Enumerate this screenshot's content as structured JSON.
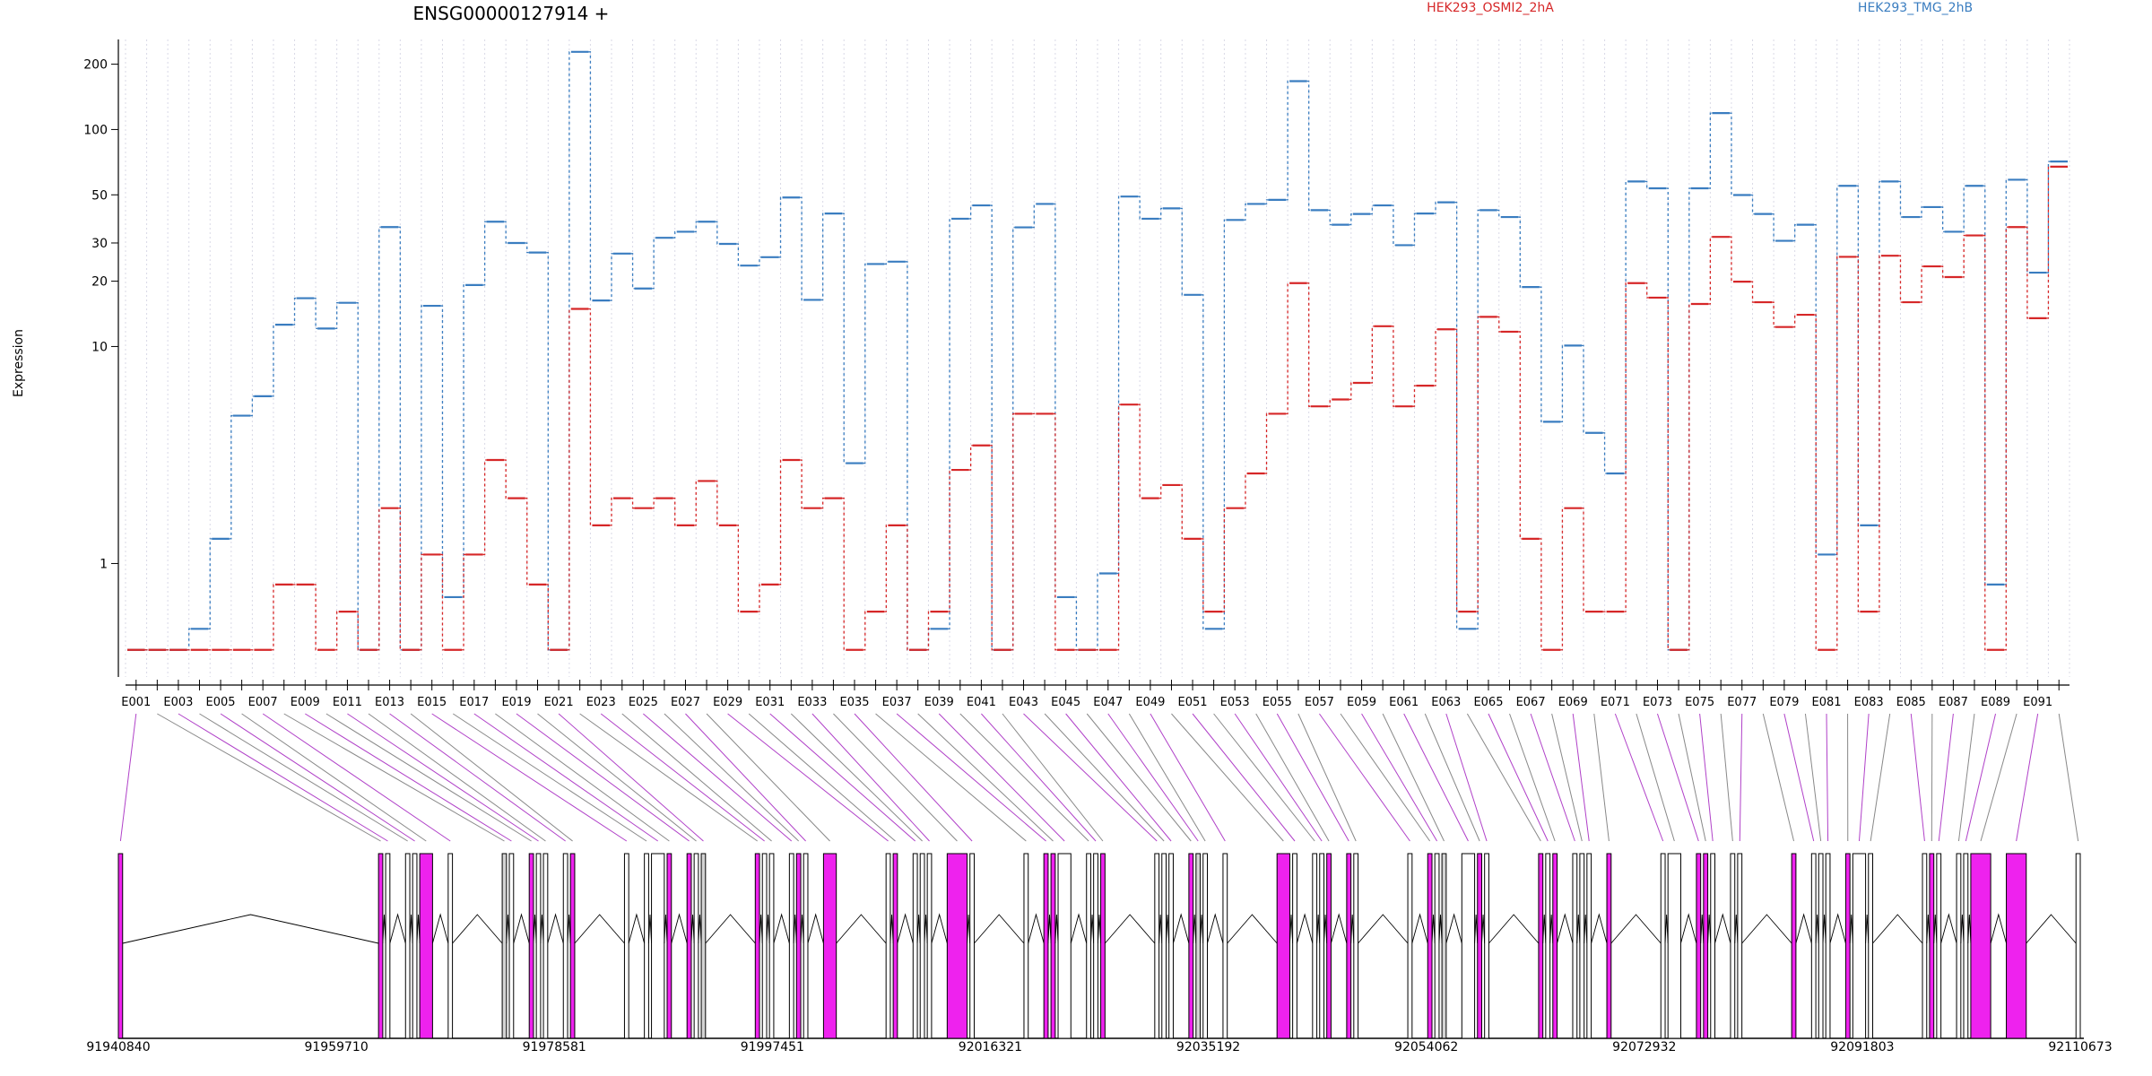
{
  "title": "ENSG00000127914 +",
  "ylabel": "Expression",
  "legend": [
    {
      "name": "HEK293_OSMI2_2hA",
      "color": "#d62728"
    },
    {
      "name": "HEK293_TMG_2hB",
      "color": "#3a7dc0"
    }
  ],
  "colors": {
    "series_a": "#d62728",
    "series_b": "#3a7dc0",
    "exon_highlight": "#ee22ee",
    "exon_plain": "#ffffff",
    "exon_shared": "#d3d3d3",
    "connector_gray": "#888888",
    "connector_magenta": "#b040c8"
  },
  "genomic_ticks": [
    "91940840",
    "91959710",
    "91978581",
    "91997451",
    "92016321",
    "92035192",
    "92054062",
    "92072932",
    "92091803",
    "92110673"
  ],
  "chart_data": {
    "type": "line",
    "title": "ENSG00000127914 +",
    "xlabel": "",
    "ylabel": "Expression",
    "yscale": "log",
    "ylim": [
      0.3,
      260
    ],
    "yticks": [
      1,
      10,
      20,
      30,
      50,
      100,
      200
    ],
    "grid": "vertical dotted per exon",
    "legend_position": "top",
    "categories": [
      "E001",
      "E002",
      "E003",
      "E004",
      "E005",
      "E006",
      "E007",
      "E008",
      "E009",
      "E010",
      "E011",
      "E012",
      "E013",
      "E014",
      "E015",
      "E016",
      "E017",
      "E018",
      "E019",
      "E020",
      "E021",
      "E022",
      "E023",
      "E024",
      "E025",
      "E026",
      "E027",
      "E028",
      "E029",
      "E030",
      "E031",
      "E032",
      "E033",
      "E034",
      "E035",
      "E036",
      "E037",
      "E038",
      "E039",
      "E040",
      "E041",
      "E042",
      "E043",
      "E044",
      "E045",
      "E046",
      "E047",
      "E048",
      "E049",
      "E050",
      "E051",
      "E052",
      "E053",
      "E054",
      "E055",
      "E056",
      "E057",
      "E058",
      "E059",
      "E060",
      "E061",
      "E062",
      "E063",
      "E064",
      "E065",
      "E066",
      "E067",
      "E068",
      "E069",
      "E070",
      "E071",
      "E072",
      "E073",
      "E074",
      "E075",
      "E076",
      "E077",
      "E078",
      "E079",
      "E080",
      "E081",
      "E082",
      "E083",
      "E084",
      "E085",
      "E086",
      "E087",
      "E088",
      "E089",
      "E090",
      "E091",
      "E092"
    ],
    "tick_labels": [
      "E001",
      "E003",
      "E005",
      "E007",
      "E009",
      "E011",
      "E013",
      "E015",
      "E017",
      "E019",
      "E021",
      "E023",
      "E025",
      "E027",
      "E029",
      "E031",
      "E033",
      "E035",
      "E037",
      "E039",
      "E041",
      "E043",
      "E045",
      "E047",
      "E049",
      "E051",
      "E053",
      "E055",
      "E057",
      "E059",
      "E061",
      "E063",
      "E065",
      "E067",
      "E069",
      "E071",
      "E073",
      "E075",
      "E077",
      "E079",
      "E081",
      "E083",
      "E085",
      "E087",
      "E089",
      "E091"
    ],
    "series": [
      {
        "name": "HEK293_TMG_2hB",
        "color": "#3a7dc0",
        "values": [
          0.4,
          0.4,
          0.4,
          0.5,
          1.3,
          4.8,
          5.9,
          12.6,
          16.7,
          12.1,
          15.9,
          0.4,
          35.5,
          0.4,
          15.4,
          0.7,
          19.2,
          37.6,
          30.0,
          27.1,
          0.4,
          228,
          16.3,
          26.8,
          18.5,
          31.7,
          33.8,
          37.6,
          29.7,
          23.6,
          25.8,
          48.6,
          16.4,
          41.0,
          2.9,
          24.0,
          24.6,
          0.4,
          0.5,
          38.8,
          44.7,
          0.4,
          35.4,
          45.4,
          0.7,
          0.4,
          0.9,
          49.1,
          38.8,
          43.3,
          17.3,
          0.5,
          38.3,
          45.4,
          47.4,
          167,
          42.5,
          36.4,
          40.8,
          44.7,
          29.3,
          41.0,
          46.2,
          0.5,
          42.5,
          39.5,
          18.8,
          4.5,
          10.1,
          4.0,
          2.6,
          57.6,
          53.6,
          0.4,
          53.6,
          119,
          49.9,
          40.8,
          30.7,
          36.4,
          1.1,
          55.0,
          1.5,
          57.6,
          39.5,
          43.9,
          33.8,
          55.0,
          0.8,
          58.7,
          21.9,
          71.2
        ]
      },
      {
        "name": "HEK293_OSMI2_2hA",
        "color": "#d62728",
        "values": [
          0.4,
          0.4,
          0.4,
          0.4,
          0.4,
          0.4,
          0.4,
          0.8,
          0.8,
          0.4,
          0.6,
          0.4,
          1.8,
          0.4,
          1.1,
          0.4,
          1.1,
          3.0,
          2.0,
          0.8,
          0.4,
          14.9,
          1.5,
          2.0,
          1.8,
          2.0,
          1.5,
          2.4,
          1.5,
          0.6,
          0.8,
          3.0,
          1.8,
          2.0,
          0.4,
          0.6,
          1.5,
          0.4,
          0.6,
          2.7,
          3.5,
          0.4,
          4.9,
          4.9,
          0.4,
          0.4,
          0.4,
          5.4,
          2.0,
          2.3,
          1.3,
          0.6,
          1.8,
          2.6,
          4.9,
          19.6,
          5.3,
          5.7,
          6.8,
          12.4,
          5.3,
          6.6,
          12.0,
          0.6,
          13.7,
          11.7,
          1.3,
          0.4,
          1.8,
          0.6,
          0.6,
          19.6,
          16.8,
          0.4,
          15.7,
          32.0,
          19.9,
          16.0,
          12.3,
          14.0,
          0.4,
          25.9,
          0.6,
          26.2,
          16.0,
          23.4,
          20.9,
          32.5,
          0.4,
          35.5,
          13.5,
          67.4
        ]
      }
    ]
  }
}
